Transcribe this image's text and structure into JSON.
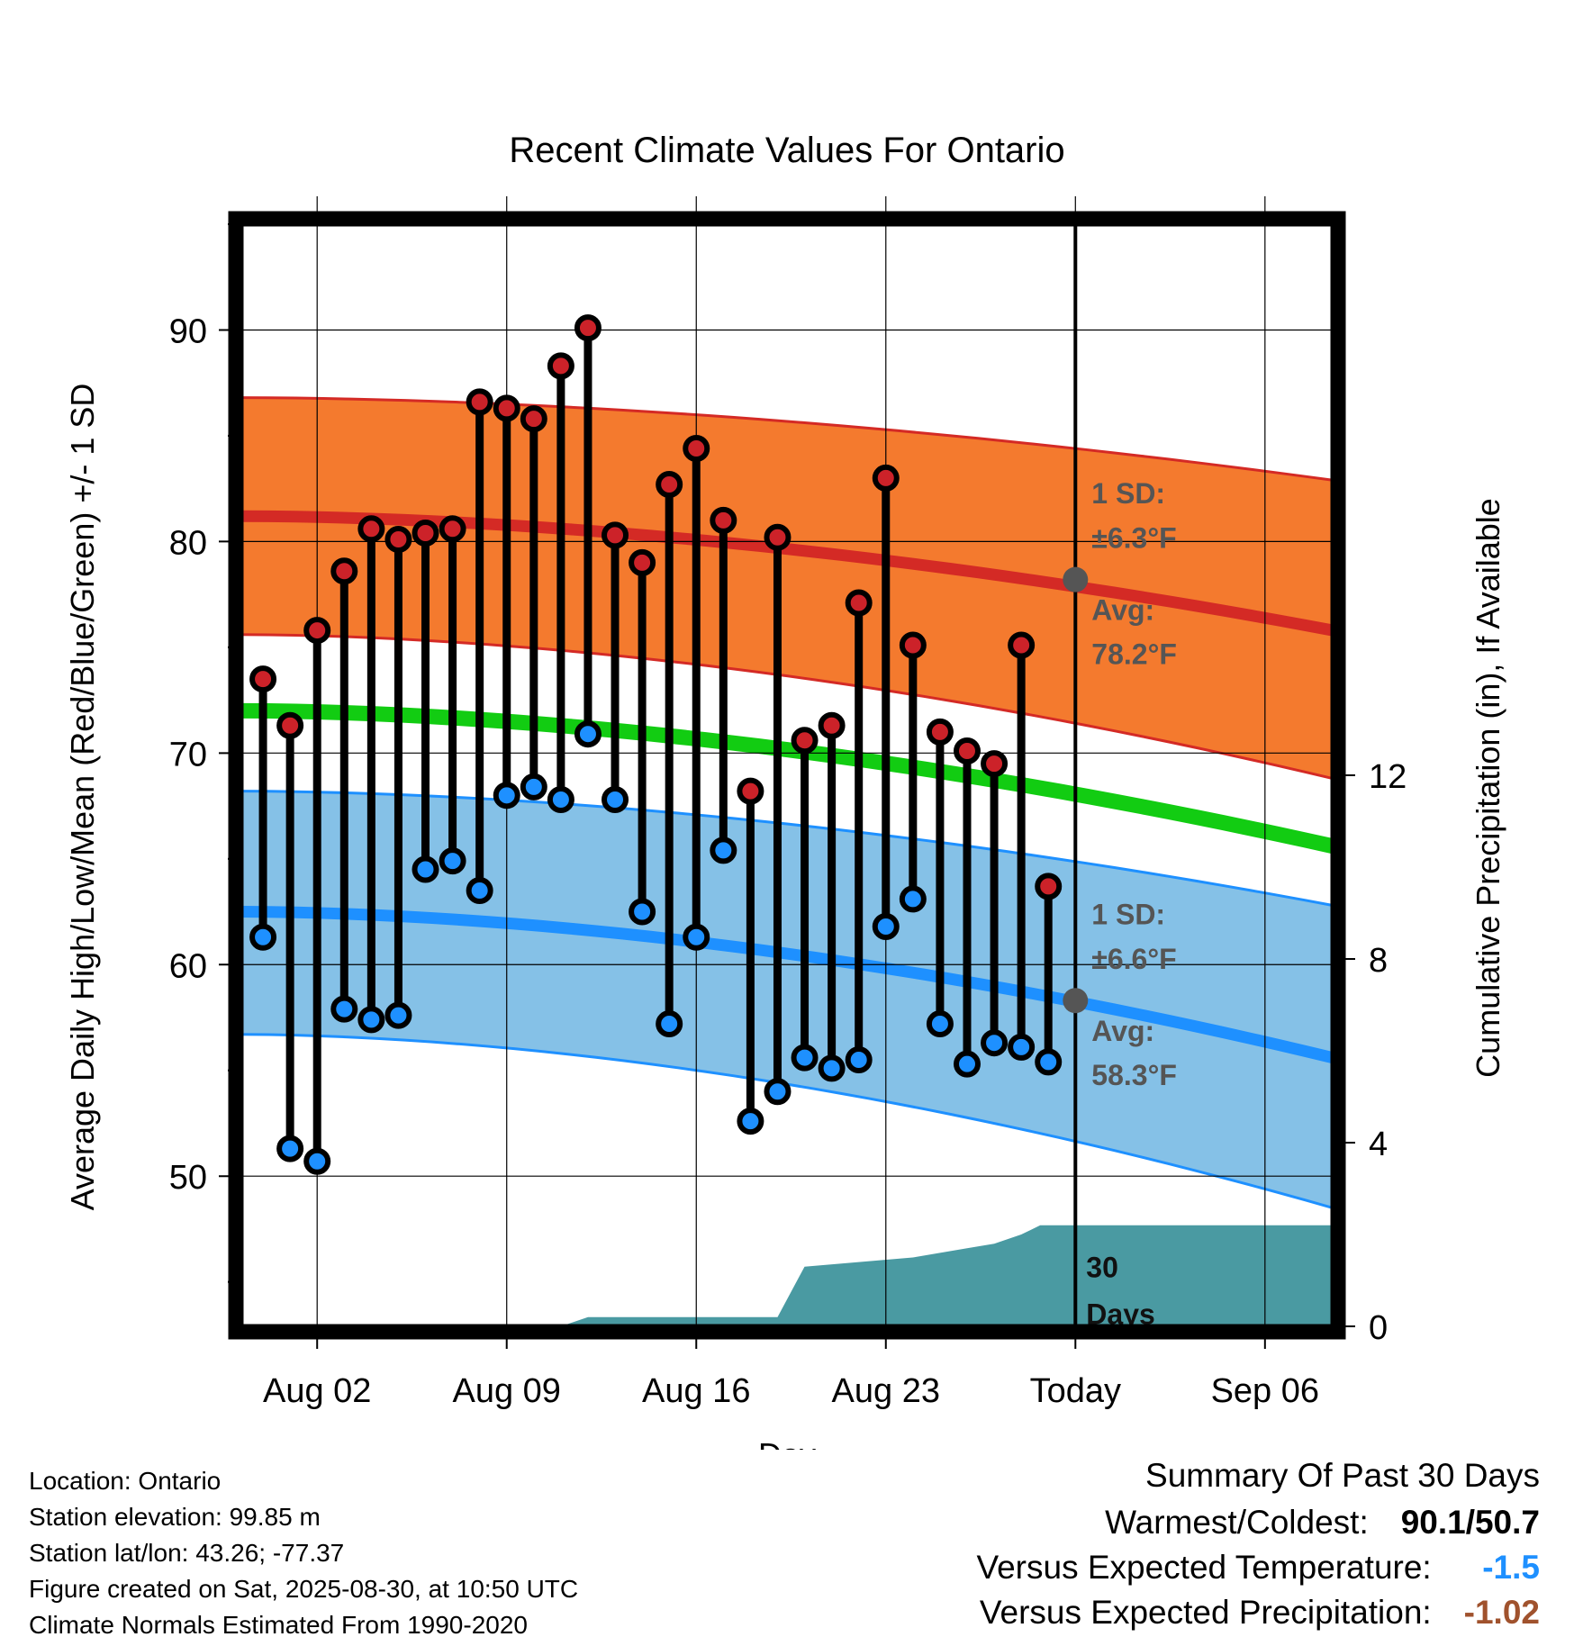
{
  "chart_data": {
    "type": "line",
    "title": "Recent Climate Values For Ontario",
    "xlabel": "Day",
    "ylabel_left": "Average Daily High/Low/Mean (Red/Blue/Green) +/- 1 SD",
    "ylabel_right": "Cumulative Precipitation (in), If Available",
    "x_tick_labels": [
      "Aug 02",
      "Aug 09",
      "Aug 16",
      "Aug 23",
      "Today",
      "Sep 06"
    ],
    "y_ticks_left": [
      "50",
      "60",
      "70",
      "80",
      "90"
    ],
    "y_ticks_right": [
      "0",
      "4",
      "8",
      "12"
    ],
    "ylim_left": [
      42.9,
      95
    ],
    "ylim_right": [
      0,
      24
    ],
    "xlim_days": [
      -30.8,
      9.5
    ],
    "today_marker_day": 0,
    "observed": {
      "day": [
        -30,
        -29,
        -28,
        -27,
        -26,
        -25,
        -24,
        -23,
        -22,
        -21,
        -20,
        -19,
        -18,
        -17,
        -16,
        -15,
        -14,
        -13,
        -12,
        -11,
        -10,
        -9,
        -8,
        -7,
        -6,
        -5,
        -4,
        -3,
        -2,
        -1
      ],
      "high": [
        73.5,
        71.3,
        75.8,
        78.6,
        80.6,
        80.1,
        80.4,
        80.6,
        86.6,
        86.3,
        85.8,
        88.3,
        90.1,
        80.3,
        79.0,
        82.7,
        84.4,
        81.0,
        68.2,
        80.2,
        70.6,
        71.3,
        77.1,
        83.0,
        75.1,
        71.0,
        70.1,
        69.5,
        75.1,
        63.7
      ],
      "low": [
        61.3,
        51.3,
        50.7,
        57.9,
        57.4,
        57.6,
        64.5,
        64.9,
        63.5,
        68.0,
        68.4,
        67.8,
        70.9,
        67.8,
        62.5,
        57.2,
        61.3,
        65.4,
        52.6,
        54.0,
        55.6,
        55.1,
        55.5,
        61.8,
        63.1,
        57.2,
        55.3,
        56.3,
        56.1,
        55.4
      ]
    },
    "normals": {
      "day": [
        -30.8,
        9.5
      ],
      "avg_high": [
        81.2,
        75.8
      ],
      "high_sd_upper": [
        86.8,
        82.9
      ],
      "high_sd_lower": [
        75.6,
        68.8
      ],
      "avg_mean": [
        72.0,
        65.6
      ],
      "avg_low": [
        62.5,
        55.6
      ],
      "low_sd_upper": [
        68.2,
        62.8
      ],
      "low_sd_lower": [
        56.7,
        48.5
      ]
    },
    "precip_cumulative": {
      "day": [
        -19,
        -18,
        -11,
        -10,
        -6,
        -5,
        -4,
        -3,
        -2,
        -1.3,
        9.5
      ],
      "value": [
        0,
        0.2,
        0.2,
        1.3,
        1.5,
        1.6,
        1.7,
        1.8,
        2.0,
        2.2,
        2.2
      ]
    },
    "annotations": {
      "high_sd_label": "1 SD:",
      "high_sd_value": "±6.3°F",
      "high_avg_label": "Avg:",
      "high_avg_value": "78.2°F",
      "low_sd_label": "1 SD:",
      "low_sd_value": "±6.6°F",
      "low_avg_label": "Avg:",
      "low_avg_value": "58.3°F",
      "days_number": "30",
      "days_word": "Days"
    },
    "colors": {
      "high_dot": "#cc2229",
      "low_dot": "#1e90ff",
      "high_band": "#f47a2e",
      "high_line": "#d42a25",
      "mean_line": "#12cc12",
      "low_band": "#85c1e7",
      "low_line": "#1e90ff",
      "precip": "#4a9aa2",
      "marker_gray": "#555555"
    }
  },
  "footer": {
    "location": "Location: Ontario",
    "elevation": "Station elevation: 99.85 m",
    "latlon": "Station lat/lon: 43.26; -77.37",
    "created": "Figure created on Sat, 2025-08-30, at 10:50 UTC",
    "normals": "Climate Normals Estimated From 1990-2020"
  },
  "summary": {
    "header": "Summary Of Past 30 Days",
    "warmest_label": "Warmest/Coldest:",
    "warmest_value": "90.1/50.7",
    "temp_label": "Versus Expected Temperature:",
    "temp_value": "-1.5",
    "temp_color": "#1e90ff",
    "precip_label": "Versus Expected Precipitation:",
    "precip_value": "-1.02",
    "precip_color": "#a0522d"
  }
}
